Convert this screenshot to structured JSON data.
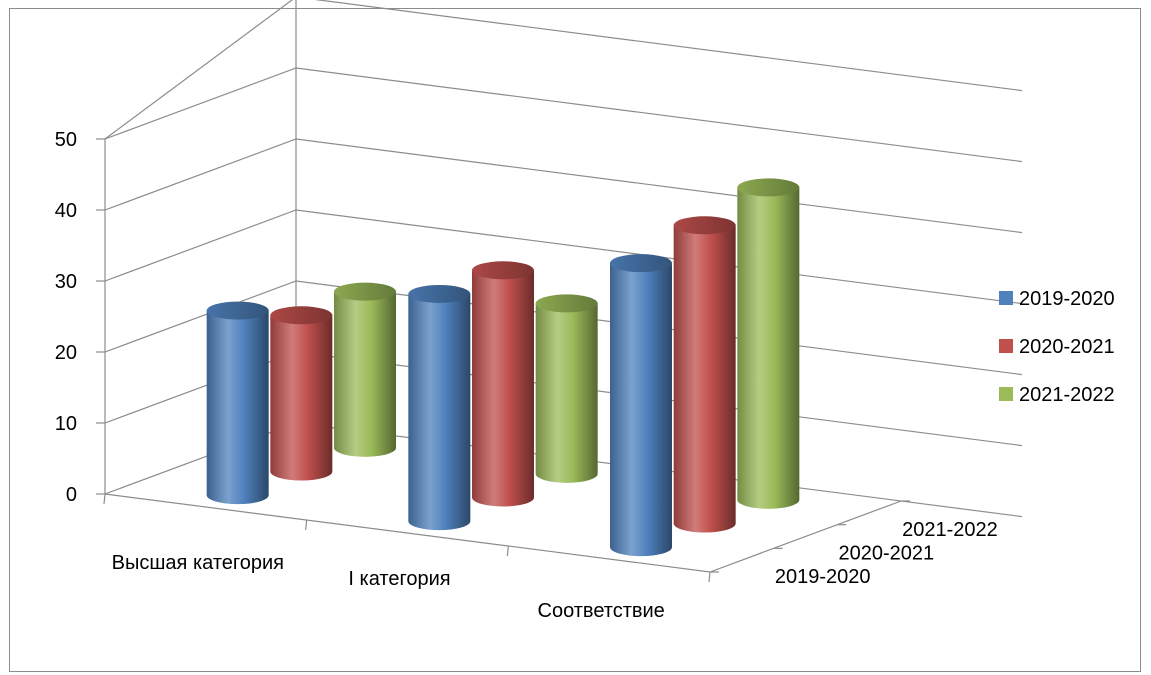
{
  "chart_data": {
    "type": "bar",
    "variant": "3d-cylinder",
    "title": "",
    "xlabel": "",
    "ylabel": "",
    "ylim": [
      0,
      50
    ],
    "y_ticks": [
      "0",
      "10",
      "20",
      "30",
      "40",
      "50"
    ],
    "categories": [
      "Высшая категория",
      "I категория",
      "Соответствие"
    ],
    "depth_categories": [
      "2019-2020",
      "2020-2021",
      "2021-2022"
    ],
    "series": [
      {
        "name": "2019-2020",
        "color": "#4f81bd",
        "values": [
          26,
          32,
          40
        ]
      },
      {
        "name": "2020-2021",
        "color": "#c0504d",
        "values": [
          22,
          32,
          42
        ]
      },
      {
        "name": "2021-2022",
        "color": "#9bbb59",
        "values": [
          22,
          24,
          44
        ]
      }
    ],
    "grid": true,
    "legend_position": "right"
  }
}
